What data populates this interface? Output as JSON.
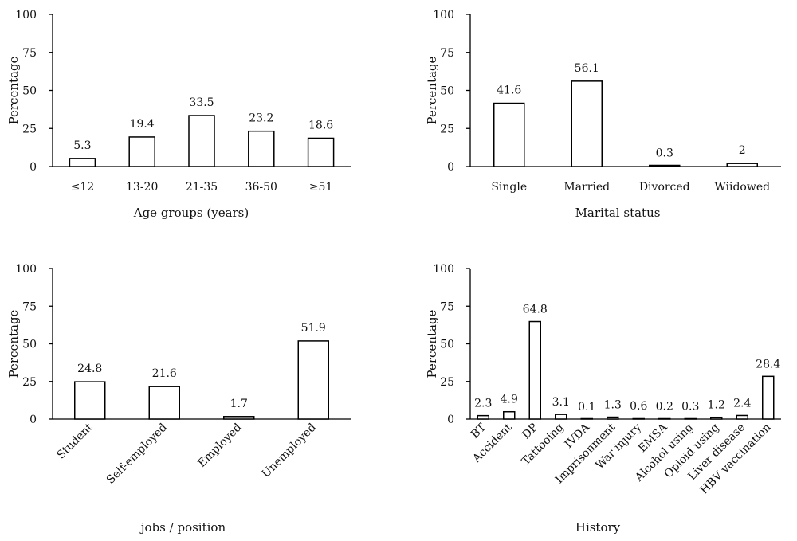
{
  "chart_data": [
    {
      "type": "bar",
      "categories": [
        "≤12",
        "13-20",
        "21-35",
        "36-50",
        "≥51"
      ],
      "values": [
        5.3,
        19.4,
        33.5,
        23.2,
        18.6
      ],
      "data_labels": [
        "5.3",
        "19.4",
        "33.5",
        "23.2",
        "18.6"
      ],
      "xlabel": "Age groups (years)",
      "ylabel": "Percentage",
      "ylim": [
        0,
        100
      ],
      "yticks": [
        "0",
        "25",
        "50",
        "75",
        "100"
      ],
      "grid": false
    },
    {
      "type": "bar",
      "categories": [
        "Single",
        "Married",
        "Divorced",
        "Wiidowed"
      ],
      "values": [
        41.6,
        56.1,
        0.3,
        2
      ],
      "data_labels": [
        "41.6",
        "56.1",
        "0.3",
        "2"
      ],
      "xlabel": "Marital status",
      "ylabel": "Percentage",
      "ylim": [
        0,
        100
      ],
      "yticks": [
        "0",
        "25",
        "50",
        "75",
        "100"
      ],
      "grid": false
    },
    {
      "type": "bar",
      "categories": [
        "Student",
        "Self-employed",
        "Employed",
        "Unemployed"
      ],
      "values": [
        24.8,
        21.6,
        1.7,
        51.9
      ],
      "data_labels": [
        "24.8",
        "21.6",
        "1.7",
        "51.9"
      ],
      "xlabel": "jobs / position",
      "ylabel": "Percentage",
      "ylim": [
        0,
        100
      ],
      "yticks": [
        "0",
        "25",
        "50",
        "75",
        "100"
      ],
      "grid": false
    },
    {
      "type": "bar",
      "categories": [
        "BT",
        "Accident",
        "DP",
        "Tattooing",
        "IVDA",
        "Imprisonment",
        "War injury",
        "EMSA",
        "Alcohol using",
        "Opioid using",
        "Liver disease",
        "HBV vaccination"
      ],
      "values": [
        2.3,
        4.9,
        64.8,
        3.1,
        0.1,
        1.3,
        0.6,
        0.2,
        0.3,
        1.2,
        2.4,
        28.4
      ],
      "data_labels": [
        "2.3",
        "4.9",
        "64.8",
        "3.1",
        "0.1",
        "1.3",
        "0.6",
        "0.2",
        "0.3",
        "1.2",
        "2.4",
        "28.4"
      ],
      "xlabel": "History",
      "ylabel": "Percentage",
      "ylim": [
        0,
        100
      ],
      "yticks": [
        "0",
        "25",
        "50",
        "75",
        "100"
      ],
      "grid": false
    }
  ]
}
